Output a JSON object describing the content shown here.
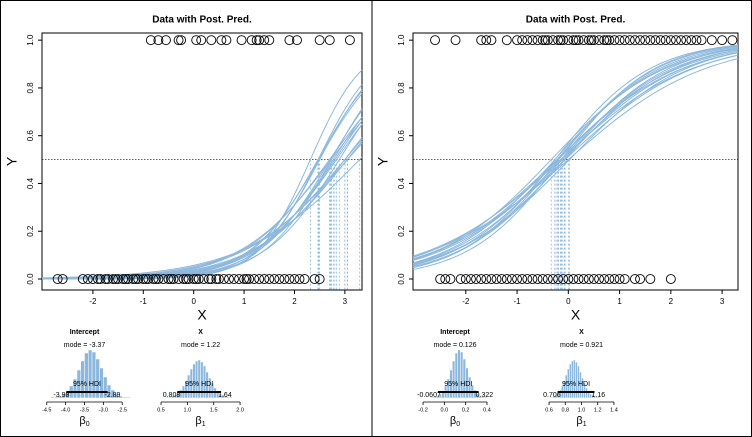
{
  "chart_data": [
    {
      "type": "scatter",
      "title": "Data with Post. Pred.",
      "xlabel": "X",
      "ylabel": "Y",
      "xlim": [
        -3.01,
        3.34
      ],
      "ylim": [
        -0.046,
        1.03
      ],
      "xticks": [
        -2,
        -1,
        0,
        1,
        2,
        3
      ],
      "yticks": [
        {
          "value": 0,
          "label": "0.0"
        },
        0.2,
        0.4,
        0.6,
        0.8,
        {
          "value": 1,
          "label": "1.0"
        }
      ],
      "reference": 0.5,
      "curve_color": "#8db8dd",
      "points": [
        {
          "y": 1,
          "x": [
            -0.85,
            -0.7,
            -0.55,
            -0.3,
            -0.25,
            0.05,
            0.15,
            0.35,
            0.55,
            0.65,
            0.95,
            1.15,
            1.25,
            1.3,
            1.4,
            1.5,
            1.9,
            2.05,
            2.5,
            2.7,
            3.1
          ]
        },
        {
          "y": 0,
          "x": [
            -2.7,
            -2.6,
            -2.2,
            -2.1,
            -2.0,
            -1.9,
            -1.85,
            -1.75,
            -1.7,
            -1.6,
            -1.55,
            -1.5,
            -1.4,
            -1.35,
            -1.3,
            -1.2,
            -1.15,
            -1.1,
            -1.0,
            -0.95,
            -0.9,
            -0.8,
            -0.75,
            -0.7,
            -0.6,
            -0.5,
            -0.45,
            -0.4,
            -0.3,
            -0.2,
            -0.15,
            -0.1,
            0.0,
            0.05,
            0.1,
            0.2,
            0.3,
            0.35,
            0.45,
            0.5,
            0.6,
            0.7,
            0.8,
            0.9,
            1.0,
            1.05,
            1.1,
            1.2,
            1.3,
            1.4,
            1.5,
            1.6,
            1.7,
            1.8,
            1.9,
            2.0,
            2.1,
            2.2,
            2.4,
            2.5
          ]
        }
      ],
      "curves": [
        [
          -3.4,
          1.2
        ],
        [
          -3.0,
          1.0
        ],
        [
          -4.0,
          1.6
        ],
        [
          -3.8,
          1.4
        ],
        [
          -2.9,
          0.95
        ],
        [
          -3.6,
          1.3
        ],
        [
          -4.2,
          1.7
        ],
        [
          -3.2,
          1.05
        ],
        [
          -3.7,
          1.5
        ],
        [
          -3.1,
          1.15
        ],
        [
          -4.4,
          1.9
        ],
        [
          -2.8,
          0.85
        ],
        [
          -3.5,
          1.25
        ],
        [
          -3.9,
          1.35
        ],
        [
          -3.3,
          1.1
        ],
        [
          -3.6,
          1.45
        ],
        [
          -4.1,
          1.5
        ],
        [
          -3.0,
          1.1
        ]
      ]
    },
    {
      "type": "scatter",
      "title": "Data with Post. Pred.",
      "xlabel": "X",
      "ylabel": "Y",
      "xlim": [
        -3.03,
        3.31
      ],
      "ylim": [
        -0.046,
        1.03
      ],
      "xticks": [
        -2,
        -1,
        0,
        1,
        2,
        3
      ],
      "yticks": [
        {
          "value": 0,
          "label": "0.0"
        },
        0.2,
        0.4,
        0.6,
        0.8,
        {
          "value": 1,
          "label": "1.0"
        }
      ],
      "reference": 0.5,
      "curve_color": "#8db8dd",
      "points": [
        {
          "y": 1,
          "x": [
            -2.6,
            -2.2,
            -1.7,
            -1.6,
            -1.5,
            -1.2,
            -1.0,
            -0.9,
            -0.8,
            -0.7,
            -0.6,
            -0.5,
            -0.45,
            -0.4,
            -0.3,
            -0.2,
            -0.15,
            -0.1,
            0.0,
            0.1,
            0.15,
            0.2,
            0.3,
            0.4,
            0.45,
            0.5,
            0.6,
            0.7,
            0.75,
            0.8,
            0.9,
            1.0,
            1.1,
            1.2,
            1.3,
            1.4,
            1.5,
            1.6,
            1.7,
            1.8,
            1.9,
            2.0,
            2.1,
            2.2,
            2.3,
            2.4,
            2.5,
            2.6,
            2.8,
            3.0,
            3.2
          ]
        },
        {
          "y": 0,
          "x": [
            -2.5,
            -2.4,
            -2.3,
            -2.1,
            -2.0,
            -1.9,
            -1.8,
            -1.7,
            -1.6,
            -1.5,
            -1.4,
            -1.3,
            -1.2,
            -1.1,
            -1.0,
            -0.9,
            -0.8,
            -0.7,
            -0.6,
            -0.5,
            -0.4,
            -0.3,
            -0.2,
            -0.1,
            0.0,
            0.1,
            0.2,
            0.3,
            0.4,
            0.5,
            0.6,
            0.7,
            0.8,
            0.9,
            1.0,
            1.1,
            1.3,
            1.4,
            1.6,
            2.0
          ]
        }
      ],
      "curves": [
        [
          0.13,
          0.92
        ],
        [
          0.05,
          0.8
        ],
        [
          0.2,
          1.05
        ],
        [
          0.1,
          0.85
        ],
        [
          0.25,
          0.95
        ],
        [
          0.0,
          0.75
        ],
        [
          0.15,
          1.1
        ],
        [
          0.3,
          0.9
        ],
        [
          0.08,
          0.98
        ],
        [
          0.18,
          0.82
        ],
        [
          -0.02,
          0.88
        ],
        [
          0.22,
          1.0
        ],
        [
          0.12,
          0.78
        ],
        [
          0.28,
          1.08
        ],
        [
          0.06,
          0.93
        ],
        [
          0.17,
          0.86
        ]
      ]
    },
    {
      "type": "histogram",
      "title": "Intercept",
      "mode_label": "mode = -3.37",
      "hdi_label": "95% HDI",
      "hdi": [
        -3.98,
        -2.89
      ],
      "xlabel": "β",
      "xlabel_sub": "0",
      "xlim": [
        -4.6,
        -2.4
      ],
      "ylim": [
        0,
        50
      ],
      "color": "#8db8dd",
      "xticks": [
        -4.5,
        {
          "value": -4,
          "label": "-4.0"
        },
        -3.5,
        {
          "value": -3,
          "label": "-3.0"
        },
        -2.5
      ],
      "bins": [
        -4.5,
        -4.4,
        -4.3,
        -4.2,
        -4.1,
        -4.0,
        -3.9,
        -3.8,
        -3.7,
        -3.6,
        -3.5,
        -3.4,
        -3.3,
        -3.2,
        -3.1,
        -3.0,
        -2.9,
        -2.8,
        -2.7,
        -2.6,
        -2.5,
        -2.4,
        -2.3
      ],
      "counts": [
        0,
        1,
        1,
        2,
        4,
        7,
        12,
        19,
        28,
        37,
        45,
        48,
        46,
        39,
        30,
        21,
        13,
        8,
        4,
        2,
        1,
        1
      ]
    },
    {
      "type": "histogram",
      "title": "X",
      "mode_label": "mode = 1.22",
      "hdi_label": "95% HDI",
      "hdi": [
        0.808,
        1.64
      ],
      "xlabel": "β",
      "xlabel_sub": "1",
      "xlim": [
        0.45,
        2.05
      ],
      "ylim": [
        0,
        40
      ],
      "color": "#8db8dd",
      "xticks": [
        0.5,
        {
          "value": 1,
          "label": "1.0"
        },
        1.5,
        {
          "value": 2,
          "label": "2.0"
        }
      ],
      "bins": [
        0.6,
        0.65,
        0.7,
        0.75,
        0.8,
        0.85,
        0.9,
        0.95,
        1.0,
        1.05,
        1.1,
        1.15,
        1.2,
        1.25,
        1.3,
        1.35,
        1.4,
        1.45,
        1.5,
        1.55,
        1.6,
        1.65,
        1.7,
        1.75,
        1.8,
        1.85,
        1.9
      ],
      "counts": [
        1,
        1,
        2,
        3,
        5,
        8,
        12,
        17,
        23,
        29,
        34,
        37,
        38,
        36,
        32,
        26,
        20,
        15,
        10,
        7,
        4,
        3,
        2,
        1,
        1,
        0
      ]
    },
    {
      "type": "histogram",
      "title": "Intercept",
      "mode_label": "mode = 0.126",
      "hdi_label": "95% HDI",
      "hdi": [
        -0.0607,
        0.322
      ],
      "xlabel": "β",
      "xlabel_sub": "0",
      "xlim": [
        -0.25,
        0.45
      ],
      "ylim": [
        0,
        50
      ],
      "color": "#8db8dd",
      "xticks": [
        -0.2,
        {
          "value": 0,
          "label": "0.0"
        },
        0.2,
        0.4
      ],
      "bins": [
        -0.15,
        -0.125,
        -0.1,
        -0.075,
        -0.05,
        -0.025,
        0.0,
        0.025,
        0.05,
        0.075,
        0.1,
        0.125,
        0.15,
        0.175,
        0.2,
        0.225,
        0.25,
        0.275,
        0.3,
        0.325,
        0.35,
        0.375,
        0.4
      ],
      "counts": [
        0,
        1,
        1,
        2,
        4,
        7,
        12,
        19,
        28,
        37,
        45,
        48,
        46,
        39,
        30,
        21,
        13,
        8,
        4,
        2,
        1,
        1
      ]
    },
    {
      "type": "histogram",
      "title": "X",
      "mode_label": "mode = 0.921",
      "hdi_label": "95% HDI",
      "hdi": [
        0.706,
        1.16
      ],
      "xlabel": "β",
      "xlabel_sub": "1",
      "xlim": [
        0.55,
        1.45
      ],
      "ylim": [
        0,
        40
      ],
      "color": "#8db8dd",
      "xticks": [
        0.6,
        0.8,
        {
          "value": 1,
          "label": "1.0"
        },
        1.2,
        1.4
      ],
      "bins": [
        0.6,
        0.625,
        0.65,
        0.675,
        0.7,
        0.725,
        0.75,
        0.775,
        0.8,
        0.825,
        0.85,
        0.875,
        0.9,
        0.925,
        0.95,
        0.975,
        1.0,
        1.025,
        1.05,
        1.075,
        1.1,
        1.125,
        1.15,
        1.175,
        1.2,
        1.225,
        1.25
      ],
      "counts": [
        1,
        1,
        2,
        3,
        5,
        8,
        12,
        17,
        23,
        29,
        34,
        37,
        38,
        36,
        32,
        26,
        20,
        15,
        10,
        7,
        4,
        3,
        2,
        1,
        1,
        0
      ]
    }
  ]
}
